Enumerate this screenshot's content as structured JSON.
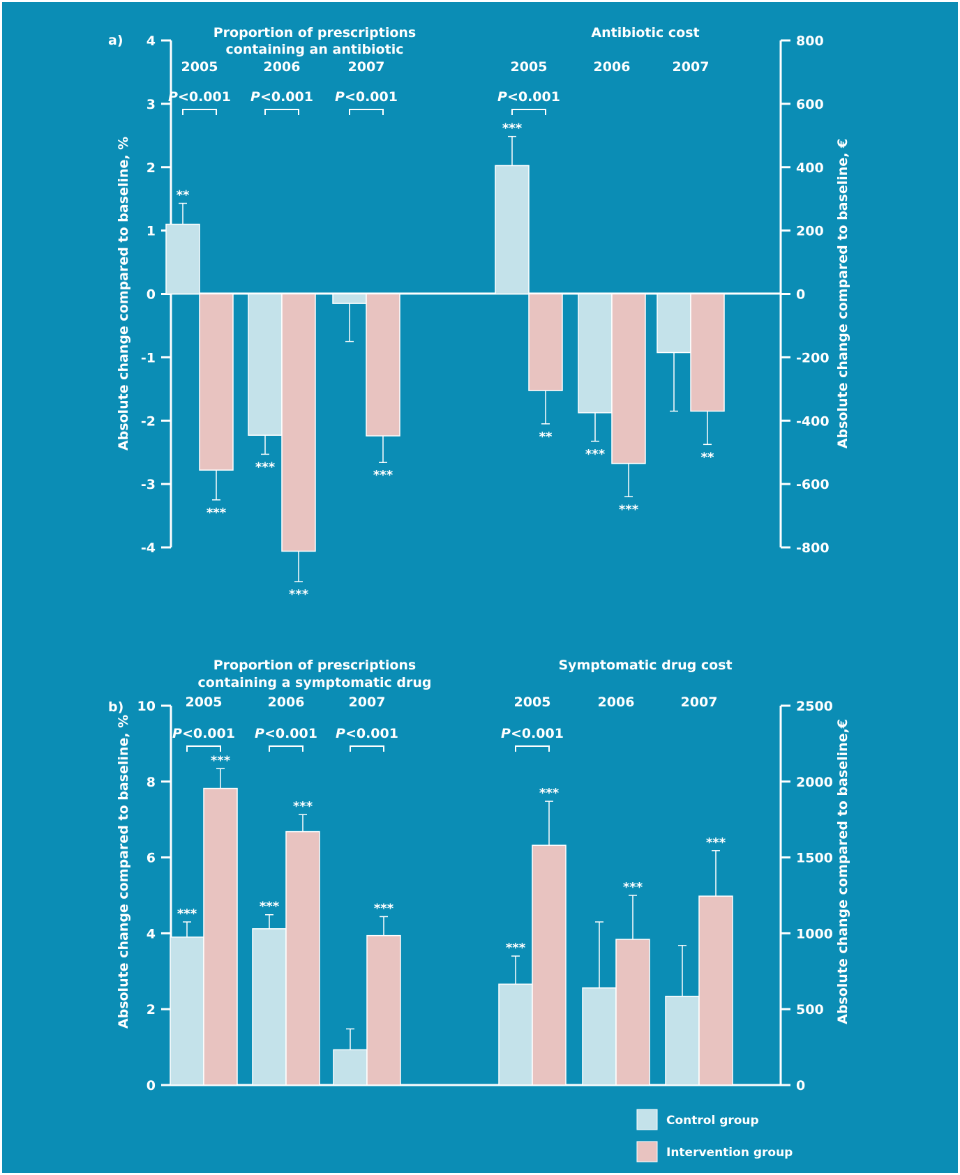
{
  "colors": {
    "background": "#0b8db5",
    "control": "#c4e2ea",
    "intervention": "#e8c3c0",
    "text": "#ffffff",
    "outer_border": "#ffffff"
  },
  "legend": {
    "placement": "bottom-right",
    "control_label": "Control group",
    "intervention_label": "Intervention group"
  },
  "chart_data": [
    {
      "type": "bar",
      "panel_label": "a)",
      "series": [
        {
          "name": "Control group"
        },
        {
          "name": "Intervention group"
        }
      ],
      "left_axis": {
        "label": "Absolute change compared to baseline, %",
        "lim": [
          -4,
          4
        ],
        "ticks": [
          "4",
          "3",
          "2",
          "1",
          "0",
          "-1",
          "-2",
          "-3",
          "-4"
        ]
      },
      "right_axis": {
        "label": "Absolute change compared to baseline, €",
        "lim": [
          -800,
          800
        ],
        "ticks": [
          "800",
          "600",
          "400",
          "200",
          "0",
          "-200",
          "-400",
          "-600",
          "-800"
        ]
      },
      "groups": [
        {
          "title_lines": [
            "Proportion of prescriptions",
            "containing an antibiotic"
          ],
          "axis": "left",
          "categories": [
            "2005",
            "2006",
            "2007"
          ],
          "control": [
            1.1,
            -2.23,
            -0.15
          ],
          "control_err": [
            0.33,
            0.3,
            0.6
          ],
          "control_sig": [
            "**",
            "***",
            ""
          ],
          "intervention": [
            -2.78,
            -4.06,
            -2.24
          ],
          "intervention_err": [
            0.47,
            0.48,
            0.42
          ],
          "intervention_sig": [
            "***",
            "***",
            "***"
          ],
          "pvalues": [
            "P<0.001",
            "P<0.001",
            "P<0.001"
          ]
        },
        {
          "title_lines": [
            "Antibiotic cost"
          ],
          "axis": "right",
          "categories": [
            "2005",
            "2006",
            "2007"
          ],
          "control": [
            405,
            -375,
            -185
          ],
          "control_err": [
            92,
            90,
            185
          ],
          "control_sig": [
            "***",
            "***",
            ""
          ],
          "intervention": [
            -305,
            -535,
            -370
          ],
          "intervention_err": [
            105,
            105,
            105
          ],
          "intervention_sig": [
            "**",
            "***",
            "**"
          ],
          "pvalues": [
            "P<0.001",
            "",
            ""
          ]
        }
      ]
    },
    {
      "type": "bar",
      "panel_label": "b)",
      "series": [
        {
          "name": "Control group"
        },
        {
          "name": "Intervention group"
        }
      ],
      "left_axis": {
        "label": "Absolute change compared to baseline, %",
        "lim": [
          0,
          10
        ],
        "ticks": [
          "10",
          "8",
          "6",
          "4",
          "2",
          "0"
        ]
      },
      "right_axis": {
        "label": "Absolute change compared to baseline,€",
        "lim": [
          0,
          2500
        ],
        "ticks": [
          "2500",
          "2000",
          "1500",
          "1000",
          "500",
          "0"
        ]
      },
      "groups": [
        {
          "title_lines": [
            "Proportion of prescriptions",
            "containing a symptomatic drug"
          ],
          "axis": "left",
          "categories": [
            "2005",
            "2006",
            "2007"
          ],
          "control": [
            3.9,
            4.12,
            0.93
          ],
          "control_err": [
            0.4,
            0.37,
            0.55
          ],
          "control_sig": [
            "***",
            "***",
            ""
          ],
          "intervention": [
            7.82,
            6.68,
            3.94
          ],
          "intervention_err": [
            0.52,
            0.45,
            0.5
          ],
          "intervention_sig": [
            "***",
            "***",
            "***"
          ],
          "pvalues": [
            "P<0.001",
            "P<0.001",
            "P<0.001"
          ]
        },
        {
          "title_lines": [
            "Symptomatic drug cost"
          ],
          "axis": "right",
          "categories": [
            "2005",
            "2006",
            "2007"
          ],
          "control": [
            665,
            640,
            585
          ],
          "control_err": [
            185,
            435,
            335
          ],
          "control_sig": [
            "***",
            "",
            ""
          ],
          "intervention": [
            1580,
            960,
            1245
          ],
          "intervention_err": [
            290,
            290,
            300
          ],
          "intervention_sig": [
            "***",
            "***",
            "***"
          ],
          "pvalues": [
            "P<0.001",
            "",
            ""
          ]
        }
      ]
    }
  ]
}
